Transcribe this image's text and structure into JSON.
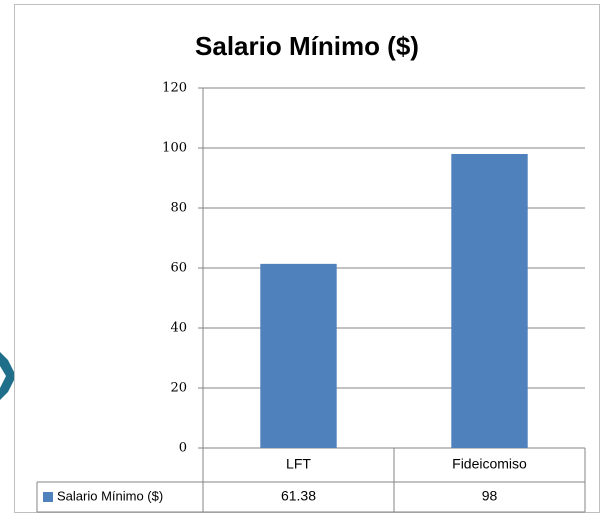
{
  "chart_data": {
    "type": "bar",
    "title": "Salario Mínimo ($)",
    "categories": [
      "LFT",
      "Fideicomiso"
    ],
    "series": [
      {
        "name": "Salario Mínimo ($)",
        "color": "#4f81bd",
        "values": [
          61.38,
          98
        ]
      }
    ],
    "ylim": [
      0,
      120
    ],
    "yticks": [
      0,
      20,
      40,
      60,
      80,
      100,
      120
    ],
    "grid": true
  }
}
